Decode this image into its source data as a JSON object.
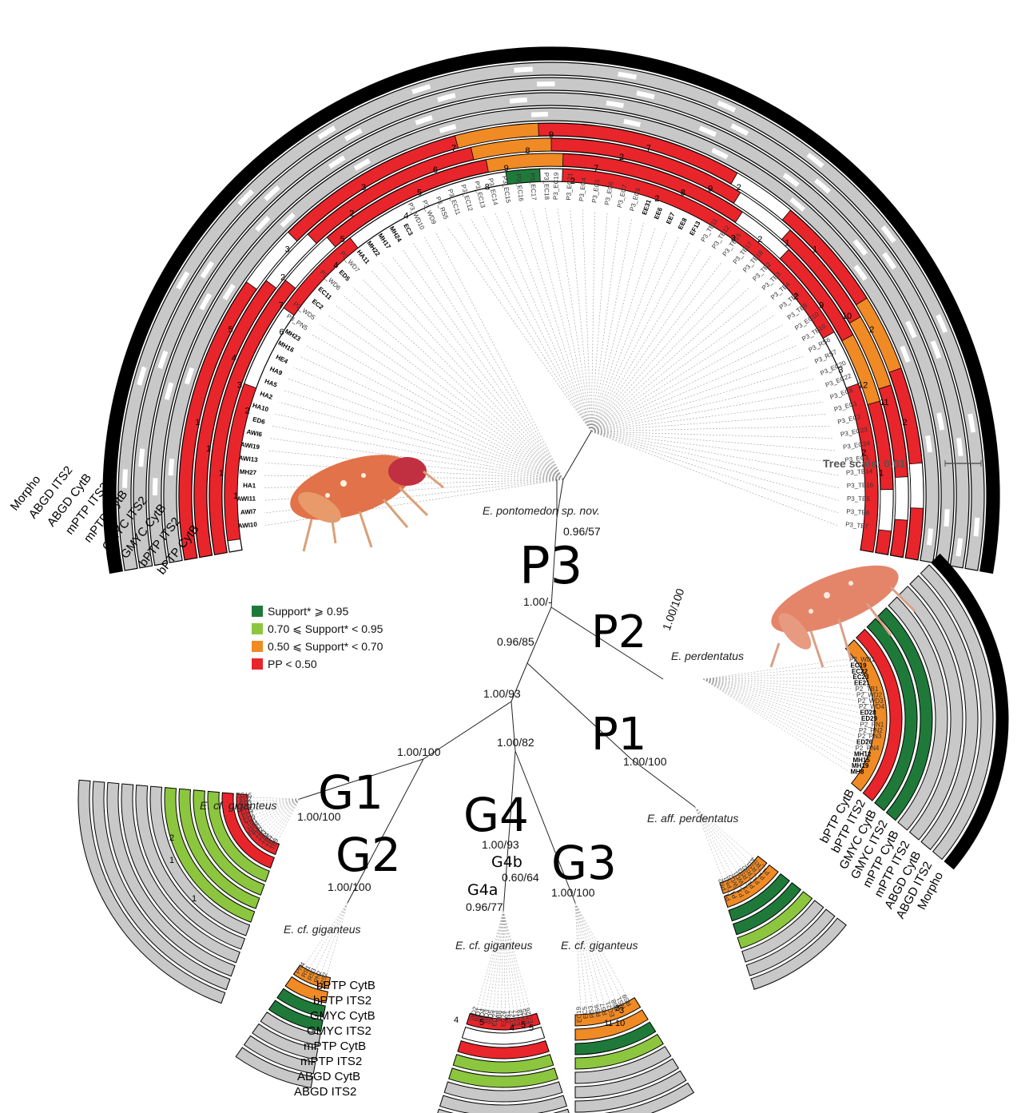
{
  "colors": {
    "support_high": "#1f7a3a",
    "support_mid": "#8cc63f",
    "support_low": "#f08a24",
    "pp_low": "#e8252b",
    "gray_ring": "#c8c8c8",
    "morpho": "#000000",
    "branch": "#222222"
  },
  "tree_scale": "Tree scale: 0.01",
  "legend": [
    {
      "label": "Support* ⩾ 0.95",
      "color": "#1f7a3a"
    },
    {
      "label": "0.70 ⩽ Support* < 0.95",
      "color": "#8cc63f"
    },
    {
      "label": "0.50 ⩽ Support* < 0.70",
      "color": "#f08a24"
    },
    {
      "label": "PP < 0.50",
      "color": "#e8252b"
    }
  ],
  "clades": {
    "P3": {
      "name": "P3",
      "species": "E. pontomedon sp. nov.",
      "support": "0.96/57",
      "support2": "1.00/-"
    },
    "P2": {
      "name": "P2",
      "species": "E. perdentatus",
      "support": "1.00/100"
    },
    "P1": {
      "name": "P1",
      "species": "E. aff. perdentatus",
      "support": "1.00/100"
    },
    "G1": {
      "name": "G1",
      "species": "E. cf. giganteus",
      "support": "1.00/100"
    },
    "G2": {
      "name": "G2",
      "species": "E. cf. giganteus",
      "support": "1.00/100"
    },
    "G3": {
      "name": "G3",
      "species": "E. cf. giganteus",
      "support": "1.00/100"
    },
    "G4": {
      "name": "G4",
      "species": "E. cf. giganteus",
      "support": "1.00/93"
    },
    "G4a": {
      "name": "G4a",
      "support": "0.96/77"
    },
    "G4b": {
      "name": "G4b",
      "support": "0.60/64"
    }
  },
  "internal_support": {
    "n1": "0.96/85",
    "n2": "1.00/93",
    "n3": "1.00/100",
    "n4": "1.00/82"
  },
  "layers_p3": [
    "Morpho",
    "ABGD ITS2",
    "ABGD CytB",
    "mPTP ITS2",
    "mPTP CytB",
    "GMYC ITS2",
    "GMYC CytB",
    "bPTP ITS2",
    "bPTP CytB"
  ],
  "layers_p2": [
    "bPTP CytB",
    "bPTP ITS2",
    "GMYC CytB",
    "GMYC ITS2",
    "mPTP CytB",
    "mPTP ITS2",
    "ABGD CytB",
    "ABGD ITS2",
    "Morpho"
  ],
  "layers_g2": [
    "bPTP CytB",
    "bPTP ITS2",
    "GMYC CytB",
    "GMYC ITS2",
    "mPTP CytB",
    "mPTP ITS2",
    "ABGD CytB",
    "ABGD ITS2"
  ],
  "p3_tips": [
    "AWI10",
    "AWI7",
    "AWI11",
    "HA1",
    "MH27",
    "AWI13",
    "AWI19",
    "AWI6",
    "ED6",
    "HA10",
    "HA2",
    "HA5",
    "HA9",
    "HE4",
    "MH16",
    "MH23",
    "P3_PN5",
    "P3_WD5",
    "EC2",
    "EC11",
    "P3_WD6",
    "ED5",
    "P3_WD7",
    "HA11",
    "MH22",
    "MH17",
    "MH24",
    "EC3",
    "P3_WD10",
    "P3_WD9",
    "P3_RS5",
    "P3_EC11",
    "P3_EC12",
    "P3_EC13",
    "P3_EC14",
    "P3_EC15",
    "P3_EC16",
    "P3_EC17",
    "P3_EC18",
    "P3_EC19",
    "P3_EC21",
    "P3_EC4",
    "P3_EC5",
    "P3_EC6",
    "P3_EC7",
    "P3_EC9",
    "EE31",
    "EE6",
    "EE7",
    "EE8",
    "EF13",
    "P3_TB11",
    "P3_TB12",
    "P3_TB15",
    "P3_TB17",
    "P3_TB18",
    "P3_TB2",
    "P3_TB3",
    "P3_TB4",
    "P3_TB8",
    "P3_TB9",
    "P3_EC10",
    "P3_TB10",
    "P3_RS6",
    "P3_RS7",
    "P3_EC20",
    "P3_EC22",
    "P3_EC8",
    "P3_EC1",
    "P3_EC2",
    "P3_EC23",
    "P3_EC24",
    "P3_EC3",
    "P3_TB14",
    "P3_TB16",
    "P3_TB5",
    "P3_TB6",
    "P3_TB7"
  ],
  "p3_bold": [
    "AWI10",
    "AWI7",
    "AWI11",
    "HA1",
    "MH27",
    "AWI13",
    "AWI19",
    "AWI6",
    "ED6",
    "HA10",
    "HA2",
    "HA5",
    "HA9",
    "HE4",
    "MH16",
    "MH23",
    "EC2",
    "EC11",
    "ED5",
    "HA11",
    "MH22",
    "MH17",
    "MH24",
    "EC3",
    "EE31",
    "EE6",
    "EE7",
    "EE8",
    "EF13"
  ],
  "p2_tips": [
    "P2_WD1",
    "EC19",
    "EC22",
    "EC23",
    "EE21",
    "P2_TB1",
    "P2_WD2",
    "P2_WD3",
    "P2_WD4",
    "ED28",
    "ED29",
    "P2_PN1",
    "P2_PN2",
    "P2_PN3",
    "ED26",
    "P2_PN4",
    "MH12",
    "MH15",
    "MH19",
    "MH8"
  ],
  "p2_bold": [
    "EC19",
    "EC22",
    "EC23",
    "EE21",
    "ED28",
    "ED29",
    "ED26",
    "MH12",
    "MH15",
    "MH19",
    "MH8"
  ],
  "g1_tips": [
    "TB9",
    "TB7",
    "TB5",
    "TB4",
    "TB3",
    "TB2",
    "TB10",
    "HA4",
    "TB1",
    "EC9",
    "EC7",
    "EC5",
    "EC4",
    "EC3",
    "EC2",
    "EC15"
  ],
  "g2_tips": [
    "RS2",
    "PN2",
    "RS3",
    "RS1",
    "PN4"
  ],
  "g4_tips": [
    "EC26",
    "EC25",
    "EC18",
    "EC17",
    "EC27",
    "PN1",
    "EC24",
    "TB8",
    "EC23",
    "WD5",
    "WD3",
    "WD4",
    "WD1",
    "WD2"
  ],
  "g3_tips": [
    "RS9",
    "RS1",
    "RS8",
    "EC21",
    "RS7",
    "RS6",
    "RS3",
    "EC5",
    "EC19"
  ],
  "p1_tips": [
    "P1_RS4",
    "P1_RS1",
    "P1_RS2",
    "P1_RS3",
    "P1_WD1",
    "P1_WD2",
    "P1_PN1",
    "P1_PN2"
  ],
  "p3_ring_numbers": [
    "1",
    "1",
    "1",
    "1",
    "2",
    "3",
    "4",
    "5",
    "6",
    "7",
    "2",
    "3",
    "4",
    "5",
    "2",
    "3",
    "4",
    "5",
    "6",
    "7",
    "8",
    "9",
    "8",
    "9",
    "2",
    "7",
    "2",
    "7",
    "2",
    "8",
    "9",
    "2",
    "3",
    "2",
    "1",
    "1",
    "2",
    "9",
    "10",
    "2",
    "3",
    "12",
    "11",
    "2",
    "2",
    "1"
  ],
  "g_ring_numbers": [
    "1",
    "2",
    "1",
    "3",
    "4",
    "5",
    "4",
    "5",
    "11",
    "10",
    "3",
    "5"
  ]
}
